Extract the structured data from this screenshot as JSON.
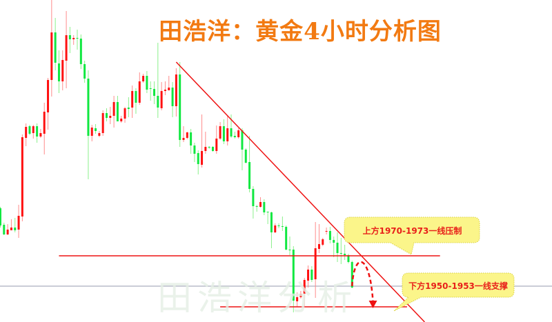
{
  "title": "田浩洋：黄金4小时分析图",
  "watermark": "田浩洋分析",
  "colors": {
    "up": "#ff1010",
    "down": "#10e840",
    "up_wick": "#ff8a8a",
    "down_wick": "#8af08a",
    "line": "#ee1111",
    "title": "#f27a12",
    "callout_fill": "#fbf58a"
  },
  "chart_data": {
    "type": "candlestick",
    "timeframe_label": "4小时",
    "ylim": [
      1946,
      2063
    ],
    "grid": false,
    "legend": "none",
    "up_color": "red",
    "down_color": "green",
    "ohlc": [
      [
        1987.5,
        1988,
        1980.5,
        1981.25
      ],
      [
        1981.5,
        1982.25,
        1977.75,
        1978
      ],
      [
        1978,
        1981.75,
        1977.75,
        1979.75
      ],
      [
        1979.5,
        1983.5,
        1979.5,
        1980.5
      ],
      [
        1980.5,
        1984,
        1978.75,
        1979.5
      ],
      [
        1979.75,
        1988.75,
        1976.75,
        1984.75
      ],
      [
        1984.5,
        2014.25,
        1982.75,
        2013.25
      ],
      [
        2013,
        2018.25,
        2010,
        2017
      ],
      [
        2017.25,
        2017.75,
        2014,
        2014.5
      ],
      [
        2014.75,
        2017.75,
        2012.75,
        2017.25
      ],
      [
        2017.25,
        2018.25,
        2011.25,
        2013.5
      ],
      [
        2013.5,
        2016.25,
        2013,
        2014.75
      ],
      [
        2014.5,
        2025.75,
        2007,
        2022.5
      ],
      [
        2022.25,
        2034.75,
        2016,
        2034
      ],
      [
        2034,
        2063,
        2028,
        2051.25
      ],
      [
        2051.25,
        2056.5,
        2037.5,
        2040.25
      ],
      [
        2040,
        2044.75,
        2029.25,
        2033.5
      ],
      [
        2033.5,
        2044.75,
        2030.25,
        2041.25
      ],
      [
        2041,
        2059,
        2031,
        2050.25
      ],
      [
        2050.25,
        2053.25,
        2043.75,
        2048.75
      ],
      [
        2048.75,
        2050.25,
        2046.75,
        2049.25
      ],
      [
        2049.25,
        2052.25,
        2045,
        2049
      ],
      [
        2049,
        2050.5,
        2038,
        2039.75
      ],
      [
        2039.75,
        2041,
        2033,
        2034.5
      ],
      [
        2034.5,
        2037.5,
        1998,
        2013.75
      ],
      [
        2013.75,
        2017.75,
        2011.75,
        2016.75
      ],
      [
        2016.5,
        2018,
        2014.5,
        2015.5
      ],
      [
        2013.75,
        2015.5,
        2013.25,
        2014.75
      ],
      [
        2014.75,
        2023,
        2013.75,
        2022
      ],
      [
        2022,
        2023.75,
        2019,
        2020.25
      ],
      [
        2020.25,
        2024.25,
        2018,
        2021
      ],
      [
        2021,
        2028.25,
        2016.75,
        2026
      ],
      [
        2026,
        2028.25,
        2019,
        2019
      ],
      [
        2019,
        2021,
        2018.5,
        2020
      ],
      [
        2020,
        2024.25,
        2018.5,
        2023.75
      ],
      [
        2024,
        2027.75,
        2020.5,
        2023.5
      ],
      [
        2024,
        2032,
        2020.25,
        2030
      ],
      [
        2030,
        2031,
        2021.75,
        2025.75
      ],
      [
        2025.75,
        2036.75,
        2025,
        2033.5
      ],
      [
        2033.5,
        2036.25,
        2033,
        2035.5
      ],
      [
        2035.5,
        2037.25,
        2029.25,
        2030.5
      ],
      [
        2031,
        2033.5,
        2026.5,
        2030.75
      ],
      [
        2030.75,
        2033.5,
        2025.25,
        2028.25
      ],
      [
        2028.25,
        2047.5,
        2020.25,
        2024
      ],
      [
        2023.75,
        2033.25,
        2023,
        2030
      ],
      [
        2030,
        2033.5,
        2028.5,
        2030.5
      ],
      [
        2030.25,
        2035.5,
        2030.25,
        2031.25
      ],
      [
        2031.25,
        2033.25,
        2020.5,
        2024.5
      ],
      [
        2024.5,
        2038.25,
        2020.75,
        2036
      ],
      [
        2036,
        2040.5,
        2009.75,
        2012.25
      ],
      [
        2012.25,
        2017.25,
        2011.5,
        2013
      ],
      [
        2013,
        2015.25,
        2012.5,
        2015
      ],
      [
        2015,
        2016.25,
        2007.25,
        2010.25
      ],
      [
        2010.25,
        2011.25,
        2004.25,
        2007.25
      ],
      [
        2007.5,
        2008.5,
        1999.75,
        2003.5
      ],
      [
        2003.25,
        2021.5,
        2002.25,
        2008.25
      ],
      [
        2008.25,
        2015.25,
        2007.25,
        2009.75
      ],
      [
        2009.75,
        2010,
        2009,
        2009.5
      ],
      [
        2009.75,
        2010,
        2008,
        2008.25
      ],
      [
        2008.25,
        2017.5,
        2007.25,
        2012.75
      ],
      [
        2012.75,
        2018.75,
        2012.25,
        2017.25
      ],
      [
        2017.25,
        2019.75,
        2010.75,
        2011.75
      ],
      [
        2011.75,
        2021.25,
        2010.25,
        2016.5
      ],
      [
        2016.5,
        2021.5,
        2013,
        2013.5
      ],
      [
        2013.75,
        2015.25,
        2012.75,
        2013.25
      ],
      [
        2013.25,
        2016.5,
        2012.75,
        2015.75
      ],
      [
        2015.75,
        2016.5,
        2001.25,
        2008.75
      ],
      [
        2008.75,
        2009.25,
        2003.75,
        2004
      ],
      [
        2004.25,
        2013.75,
        1993.25,
        1994.5
      ],
      [
        1994.5,
        1995.5,
        1983.75,
        1988.25
      ],
      [
        1988.25,
        1988.75,
        1986.25,
        1988
      ],
      [
        1988,
        1991.5,
        1987.75,
        1989.75
      ],
      [
        1989.75,
        1990.75,
        1985,
        1986
      ],
      [
        1986.25,
        1986.25,
        1981.75,
        1986
      ],
      [
        1986,
        1986.25,
        1973,
        1978.75
      ],
      [
        1978.75,
        1982,
        1978.5,
        1981.25
      ],
      [
        1981.25,
        1982,
        1980.25,
        1981
      ],
      [
        1981,
        1984.5,
        1979.25,
        1980.75
      ],
      [
        1980.75,
        1981.25,
        1972.25,
        1972.5
      ],
      [
        1972.5,
        1977.25,
        1970.5,
        1972.25
      ],
      [
        1972.5,
        1973.75,
        1949.75,
        1954
      ],
      [
        1953.75,
        1957,
        1951.75,
        1955.25
      ],
      [
        1955.25,
        1957.5,
        1954.75,
        1956.5
      ],
      [
        1956.5,
        1962.25,
        1951.75,
        1961.5
      ],
      [
        1961.25,
        1966.75,
        1958.75,
        1965.25
      ],
      [
        1965.25,
        1966.5,
        1960.75,
        1961.5
      ],
      [
        1961.75,
        1982.5,
        1955,
        1973
      ],
      [
        1972.75,
        1981.75,
        1971.25,
        1974.5
      ],
      [
        1974.25,
        1976.75,
        1973.75,
        1976.25
      ],
      [
        1979,
        1980.5,
        1978,
        1979.25
      ],
      [
        1979.25,
        1980.75,
        1974.75,
        1976
      ],
      [
        1976,
        1977.25,
        1969.75,
        1975
      ],
      [
        1975,
        1978.75,
        1968,
        1971.25
      ],
      [
        1971.25,
        1976.75,
        1967.25,
        1971
      ],
      [
        1971,
        1974.25,
        1968.75,
        1970.5
      ],
      [
        1970.5,
        1971,
        1967.5,
        1968
      ],
      [
        1968,
        1968.5,
        1958.5,
        1958.75
      ]
    ],
    "resistance_line": {
      "price": 1970.25,
      "from_bar": 16,
      "to_bar": 120
    },
    "support_line": {
      "price": 1951.75,
      "from_bar": 60,
      "to_bar": 111
    },
    "current_price_line": {
      "price": 1959.25
    },
    "trendline": {
      "from": [
        48,
        2040.5
      ],
      "to": [
        115.8,
        1946.25
      ]
    },
    "projection": {
      "from": [
        96,
        1959.25
      ],
      "peak": [
        99,
        1968.5
      ],
      "to": [
        101.7,
        1952
      ]
    },
    "annotations": [
      {
        "text": "上方1970-1973一线压制"
      },
      {
        "text": "下方1950-1953一线支撑"
      }
    ]
  }
}
